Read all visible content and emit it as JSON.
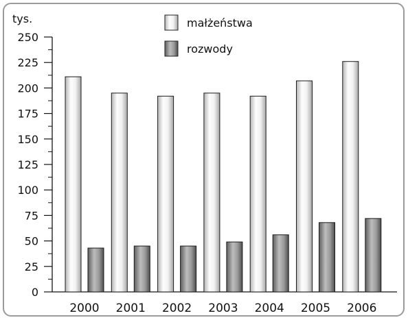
{
  "chart_data": {
    "type": "bar",
    "unit_label": "tys.",
    "categories": [
      "2000",
      "2001",
      "2002",
      "2003",
      "2004",
      "2005",
      "2006"
    ],
    "series": [
      {
        "name": "małżeństwa",
        "values": [
          211,
          195,
          192,
          195,
          192,
          207,
          226
        ],
        "color": "#e0e0e0"
      },
      {
        "name": "rozwody",
        "values": [
          43,
          45,
          45,
          49,
          56,
          68,
          72
        ],
        "color": "#8a8a8a"
      }
    ],
    "yticks": [
      "0",
      "25",
      "50",
      "75",
      "100",
      "125",
      "150",
      "175",
      "200",
      "225",
      "250"
    ],
    "ylim": [
      0,
      250
    ],
    "grid": false,
    "legend": "top-center"
  }
}
